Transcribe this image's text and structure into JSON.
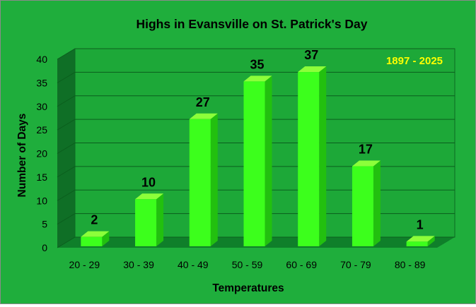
{
  "chart_data": {
    "type": "bar",
    "title": "Highs in Evansville on St. Patrick's Day",
    "annotation": "1897 - 2025",
    "xlabel": "Temperatures",
    "ylabel": "Number of Days",
    "categories": [
      "20 - 29",
      "30 - 39",
      "40 - 49",
      "50 - 59",
      "60 - 69",
      "70 - 79",
      "80 - 89"
    ],
    "values": [
      2,
      10,
      27,
      35,
      37,
      17,
      1
    ],
    "ylim": [
      0,
      40
    ],
    "yticks": [
      "0",
      "5",
      "10",
      "15",
      "20",
      "25",
      "30",
      "35",
      "40"
    ],
    "grid": true,
    "style": "3d",
    "colors": {
      "background": "#1fae3c",
      "plot_wall": "#1da838",
      "side_wall": "#0f6f26",
      "floor": "#0f7f2a",
      "bar_front": "#3cff1c",
      "bar_top": "#8cff3a",
      "bar_side": "#22c00f",
      "annotation": "#ffff00",
      "text": "#000000"
    }
  }
}
